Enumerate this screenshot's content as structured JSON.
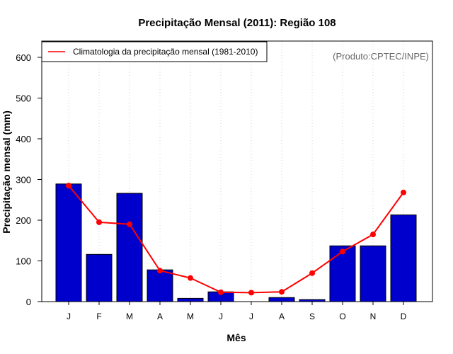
{
  "chart_data": {
    "type": "bar",
    "title": "Precipitação Mensal (2011): Região 108",
    "xlabel": "Mês",
    "ylabel": "Precipitação mensal (mm)",
    "ylim": [
      0,
      640
    ],
    "yticks": [
      0,
      100,
      200,
      300,
      400,
      500,
      600
    ],
    "categories": [
      "J",
      "F",
      "M",
      "A",
      "M",
      "J",
      "J",
      "A",
      "S",
      "O",
      "N",
      "D"
    ],
    "series": [
      {
        "name": "Precipitação mensal (2011)",
        "kind": "bar",
        "color": "#0000CC",
        "values": [
          289,
          116,
          266,
          78,
          8,
          24,
          0,
          10,
          5,
          137,
          137,
          213
        ]
      },
      {
        "name": "Climatologia da precipitação mensal (1981-2010)",
        "kind": "line",
        "color": "#FF0000",
        "values": [
          285,
          195,
          190,
          76,
          58,
          23,
          22,
          24,
          70,
          123,
          165,
          268
        ]
      }
    ],
    "legend": {
      "position": "top-left",
      "entries": [
        "Climatologia da precipitação mensal (1981-2010)"
      ]
    },
    "grid": "vertical dotted at month positions",
    "annotation": "(Produto:CPTEC/INPE)"
  }
}
